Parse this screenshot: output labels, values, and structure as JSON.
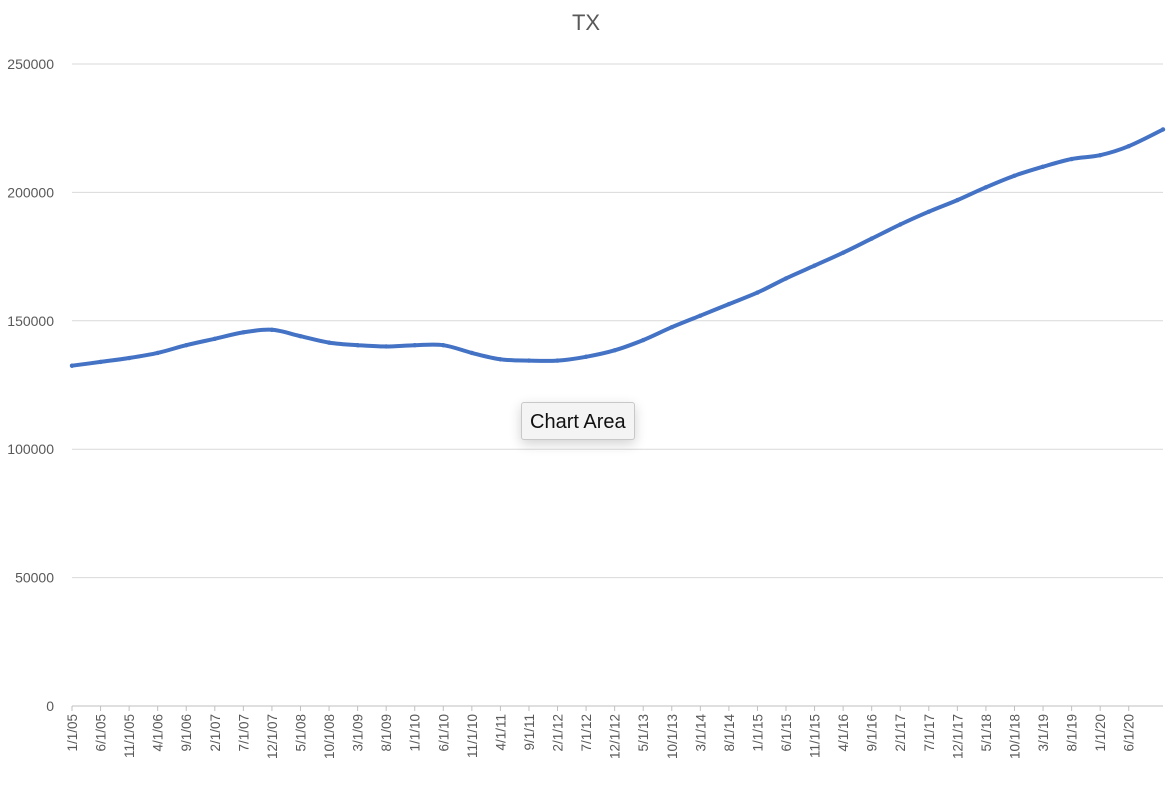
{
  "colors": {
    "series": "#4472c4"
  },
  "tooltip": {
    "label": "Chart Area"
  },
  "chart_data": {
    "type": "line",
    "title": "TX",
    "xlabel": "",
    "ylabel": "",
    "ylim": [
      0,
      250000
    ],
    "y_ticks": [
      "0",
      "50000",
      "100000",
      "150000",
      "200000",
      "250000"
    ],
    "y_tick_values": [
      0,
      50000,
      100000,
      150000,
      200000,
      250000
    ],
    "grid": true,
    "legend": "none",
    "x_tick_labels": [
      "1/1/05",
      "6/1/05",
      "11/1/05",
      "4/1/06",
      "9/1/06",
      "2/1/07",
      "7/1/07",
      "12/1/07",
      "5/1/08",
      "10/1/08",
      "3/1/09",
      "8/1/09",
      "1/1/10",
      "6/1/10",
      "11/1/10",
      "4/1/11",
      "9/1/11",
      "2/1/12",
      "7/1/12",
      "12/1/12",
      "5/1/13",
      "10/1/13",
      "3/1/14",
      "8/1/14",
      "1/1/15",
      "6/1/15",
      "11/1/15",
      "4/1/16",
      "9/1/16",
      "2/1/17",
      "7/1/17",
      "12/1/17",
      "5/1/18",
      "10/1/18",
      "3/1/19",
      "8/1/19",
      "1/1/20",
      "6/1/20"
    ],
    "series": [
      {
        "x": [
          "1/1/05",
          "6/1/05",
          "11/1/05",
          "4/1/06",
          "9/1/06",
          "2/1/07",
          "7/1/07",
          "12/1/07",
          "5/1/08",
          "10/1/08",
          "3/1/09",
          "8/1/09",
          "1/1/10",
          "6/1/10",
          "11/1/10",
          "4/1/11",
          "9/1/11",
          "2/1/12",
          "7/1/12",
          "12/1/12",
          "5/1/13",
          "10/1/13",
          "3/1/14",
          "8/1/14",
          "1/1/15",
          "6/1/15",
          "11/1/15",
          "4/1/16",
          "9/1/16",
          "2/1/17",
          "7/1/17",
          "12/1/17",
          "5/1/18",
          "10/1/18",
          "3/1/19",
          "8/1/19",
          "1/1/20",
          "6/1/20",
          "12/1/20"
        ],
        "values": [
          132500,
          134000,
          135500,
          137500,
          140500,
          143000,
          145500,
          146500,
          144000,
          141500,
          140500,
          140000,
          140500,
          140500,
          137500,
          135000,
          134500,
          134500,
          136000,
          138500,
          142500,
          147500,
          152000,
          156500,
          161000,
          166500,
          171500,
          176500,
          182000,
          187500,
          192500,
          197000,
          202000,
          206500,
          210000,
          213000,
          214500,
          218000,
          224500
        ]
      }
    ]
  }
}
